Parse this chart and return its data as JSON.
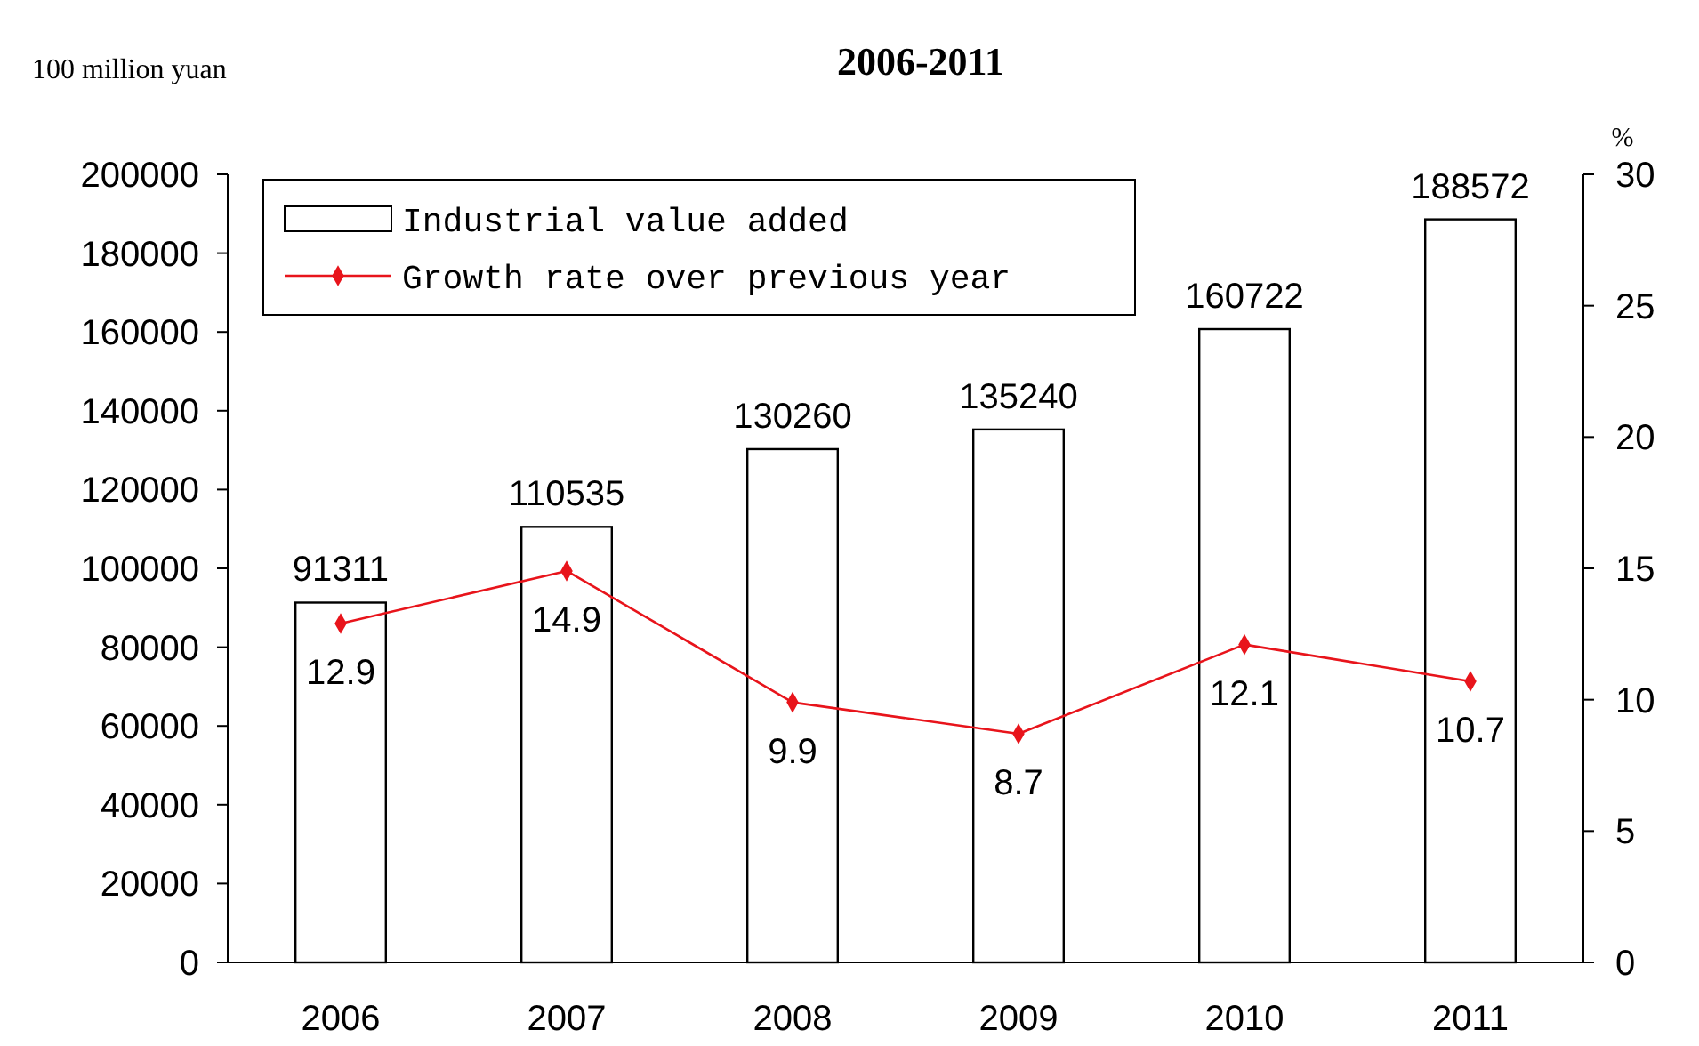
{
  "chart_data": {
    "type": "bar",
    "title": "2006-2011",
    "ylabel": "100 million yuan",
    "y2label": "%",
    "categories": [
      "2006",
      "2007",
      "2008",
      "2009",
      "2010",
      "2011"
    ],
    "series": [
      {
        "name": "Industrial value added",
        "color": "#ffffff",
        "values": [
          91311,
          110535,
          130260,
          135240,
          160722,
          188572
        ]
      },
      {
        "name": "Growth rate over previous year",
        "type": "line",
        "axis": "y2",
        "color": "#e8141b",
        "marker": "diamond",
        "values": [
          12.9,
          14.9,
          9.9,
          8.7,
          12.1,
          10.7
        ]
      }
    ],
    "ylim": [
      0,
      200000
    ],
    "yticks": [
      0,
      20000,
      40000,
      60000,
      80000,
      100000,
      120000,
      140000,
      160000,
      180000,
      200000
    ],
    "y2lim": [
      0,
      30
    ],
    "y2ticks": [
      0,
      5,
      10,
      15,
      20,
      25,
      30
    ],
    "data_labels": true,
    "legend": "top left",
    "grid": false
  }
}
